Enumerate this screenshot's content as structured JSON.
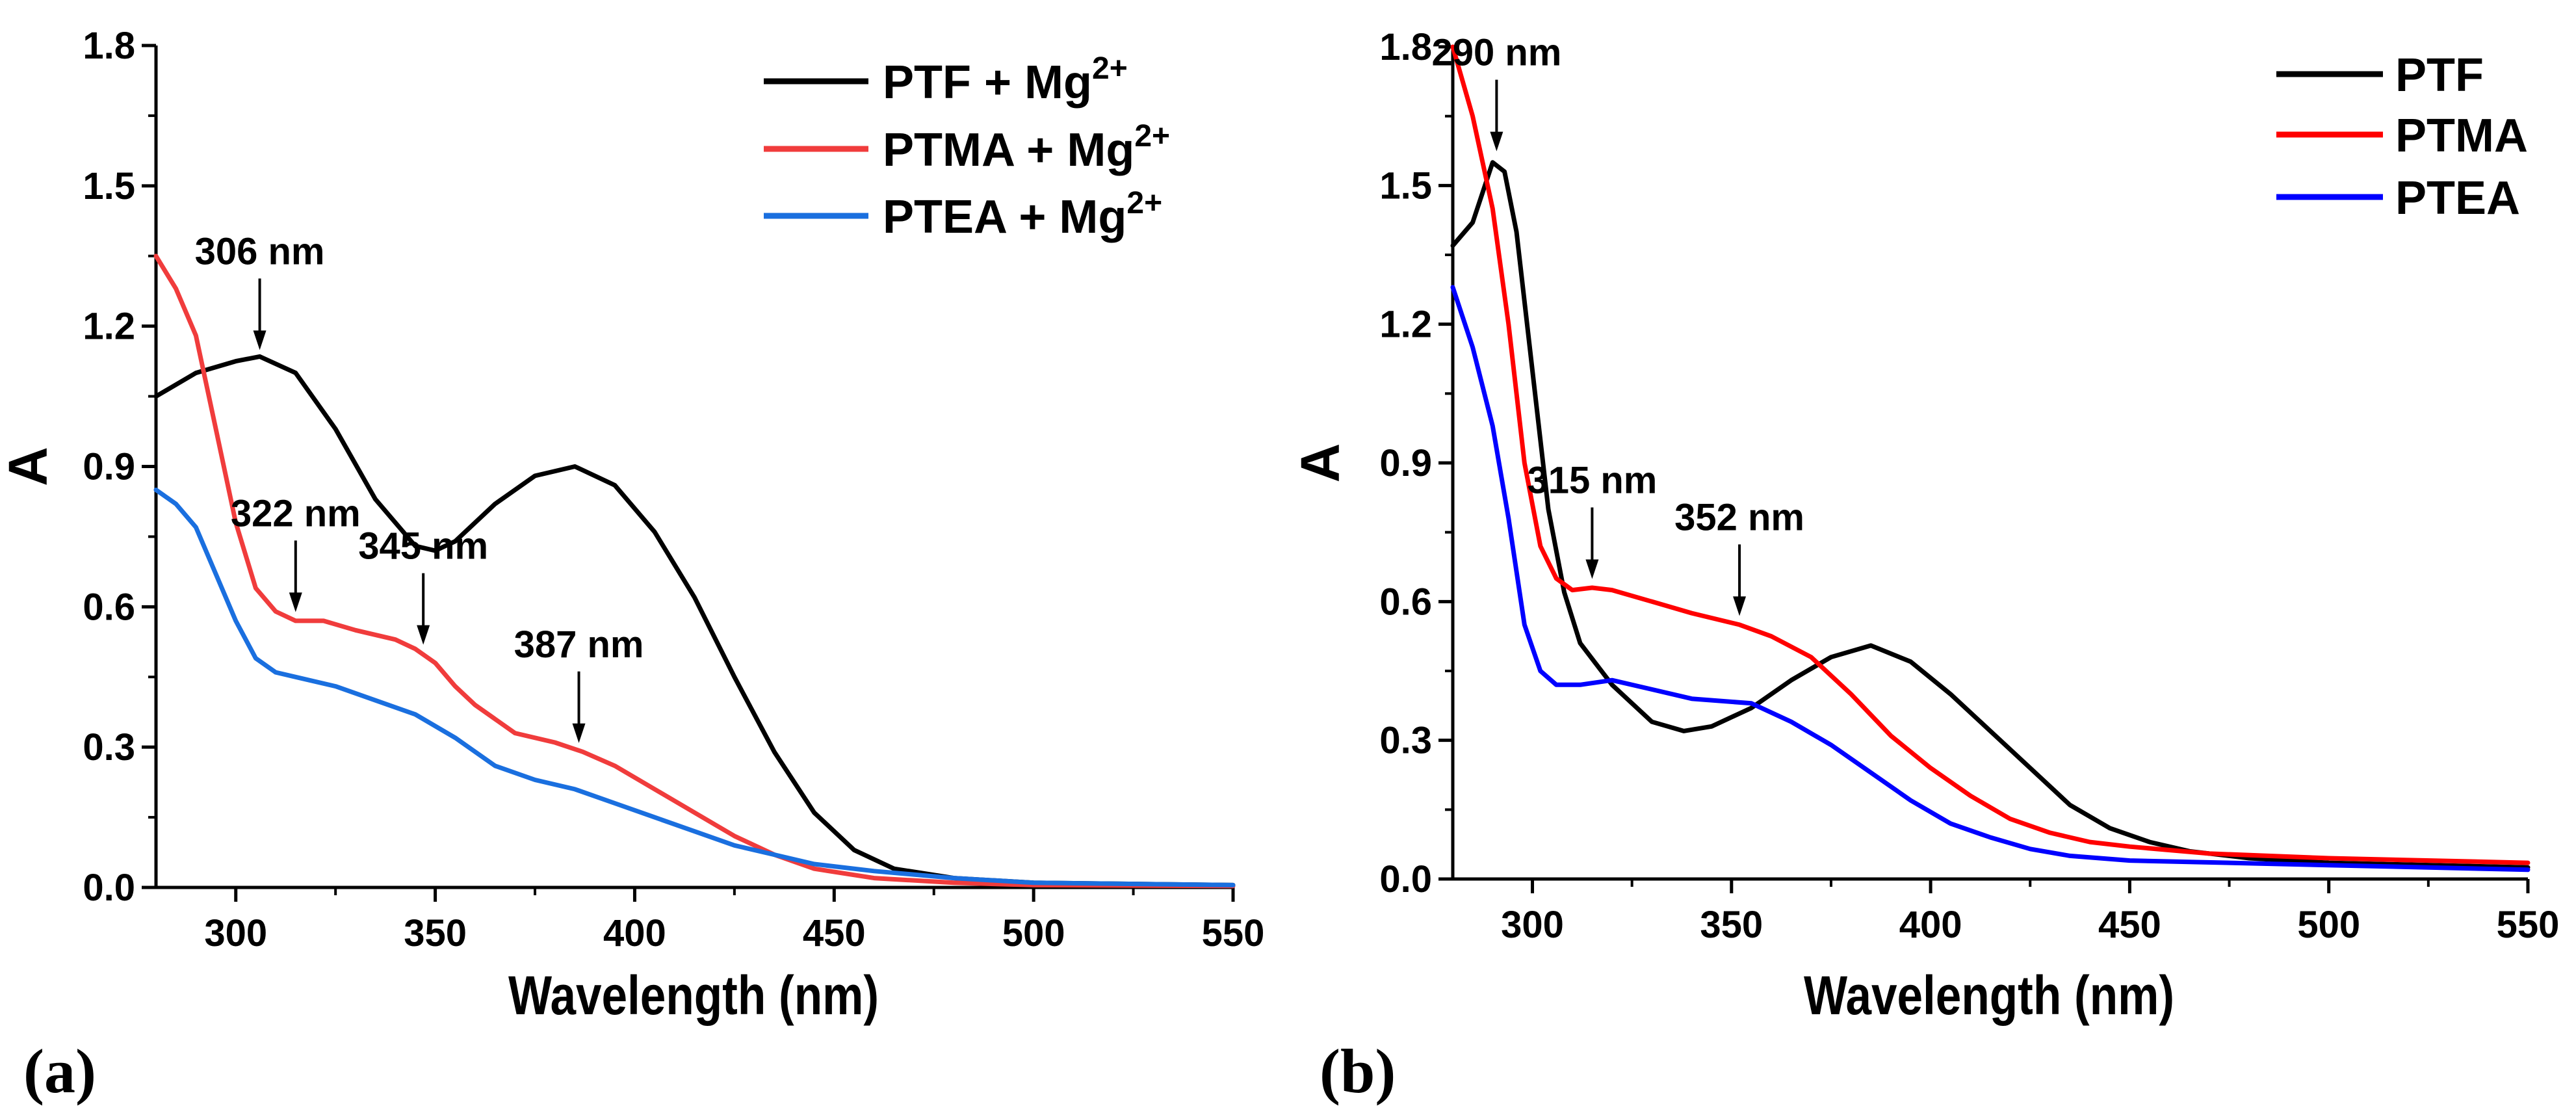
{
  "chart_data": [
    {
      "type": "line",
      "panel_label": "(a)",
      "xlabel": "Wavelength (nm)",
      "ylabel": "A",
      "xlim": [
        280,
        550
      ],
      "ylim": [
        0,
        1.8
      ],
      "xticks": [
        "300",
        "350",
        "400",
        "450",
        "500",
        "550"
      ],
      "xtick_values": [
        300,
        350,
        400,
        450,
        500,
        550
      ],
      "yticks": [
        "0.0",
        "0.3",
        "0.6",
        "0.9",
        "1.2",
        "1.5",
        "1.8"
      ],
      "ytick_values": [
        0,
        0.3,
        0.6,
        0.9,
        1.2,
        1.5,
        1.8
      ],
      "grid": false,
      "legend_placement": "top-right",
      "series": [
        {
          "name": "PTF + Mg",
          "superscript": "2+",
          "color": "#000000",
          "x": [
            280,
            290,
            300,
            306,
            315,
            325,
            335,
            345,
            350,
            355,
            365,
            375,
            385,
            395,
            405,
            415,
            425,
            435,
            445,
            455,
            465,
            480,
            500,
            550
          ],
          "y": [
            1.05,
            1.1,
            1.125,
            1.135,
            1.1,
            0.98,
            0.83,
            0.73,
            0.72,
            0.74,
            0.82,
            0.88,
            0.9,
            0.86,
            0.76,
            0.62,
            0.45,
            0.29,
            0.16,
            0.08,
            0.04,
            0.02,
            0.01,
            0.005
          ]
        },
        {
          "name": "PTMA + Mg",
          "superscript": "2+",
          "color": "#f03c3c",
          "x": [
            280,
            285,
            290,
            295,
            300,
            305,
            310,
            315,
            322,
            330,
            340,
            345,
            350,
            355,
            360,
            370,
            380,
            387,
            395,
            405,
            415,
            425,
            435,
            445,
            460,
            480,
            500,
            550
          ],
          "y": [
            1.35,
            1.28,
            1.18,
            0.98,
            0.78,
            0.64,
            0.59,
            0.57,
            0.57,
            0.55,
            0.53,
            0.51,
            0.48,
            0.43,
            0.39,
            0.33,
            0.31,
            0.29,
            0.26,
            0.21,
            0.16,
            0.11,
            0.07,
            0.04,
            0.02,
            0.01,
            0.005,
            0.003
          ]
        },
        {
          "name": "PTEA + Mg",
          "superscript": "2+",
          "color": "#1a6fdf",
          "x": [
            280,
            285,
            290,
            295,
            300,
            305,
            310,
            315,
            325,
            335,
            345,
            355,
            365,
            375,
            385,
            395,
            405,
            415,
            425,
            435,
            445,
            460,
            480,
            500,
            550
          ],
          "y": [
            0.85,
            0.82,
            0.77,
            0.67,
            0.57,
            0.49,
            0.46,
            0.45,
            0.43,
            0.4,
            0.37,
            0.32,
            0.26,
            0.23,
            0.21,
            0.18,
            0.15,
            0.12,
            0.09,
            0.07,
            0.05,
            0.035,
            0.02,
            0.01,
            0.005
          ]
        }
      ],
      "annotations": [
        {
          "text": "306 nm",
          "x": 306,
          "y": 1.135
        },
        {
          "text": "322 nm",
          "x": 315,
          "y": 0.575
        },
        {
          "text": "345 nm",
          "x": 347,
          "y": 0.505
        },
        {
          "text": "387 nm",
          "x": 386,
          "y": 0.295
        }
      ]
    },
    {
      "type": "line",
      "panel_label": "(b)",
      "xlabel": "Wavelength (nm)",
      "ylabel": "A",
      "xlim": [
        280,
        550
      ],
      "ylim": [
        0,
        1.8
      ],
      "xticks": [
        "300",
        "350",
        "400",
        "450",
        "500",
        "550"
      ],
      "xtick_values": [
        300,
        350,
        400,
        450,
        500,
        550
      ],
      "yticks": [
        "0.0",
        "0.3",
        "0.6",
        "0.9",
        "1.2",
        "1.5",
        "1.8"
      ],
      "ytick_values": [
        0,
        0.3,
        0.6,
        0.9,
        1.2,
        1.5,
        1.8
      ],
      "grid": false,
      "legend_placement": "top-right",
      "series": [
        {
          "name": "PTF",
          "superscript": "",
          "color": "#000000",
          "x": [
            280,
            285,
            290,
            293,
            296,
            300,
            304,
            308,
            312,
            320,
            330,
            338,
            345,
            355,
            365,
            375,
            385,
            395,
            405,
            415,
            425,
            435,
            445,
            455,
            465,
            480,
            500,
            550
          ],
          "y": [
            1.37,
            1.42,
            1.55,
            1.53,
            1.4,
            1.1,
            0.8,
            0.62,
            0.51,
            0.42,
            0.34,
            0.32,
            0.33,
            0.37,
            0.43,
            0.48,
            0.505,
            0.47,
            0.4,
            0.32,
            0.24,
            0.16,
            0.11,
            0.08,
            0.06,
            0.045,
            0.035,
            0.025
          ]
        },
        {
          "name": "PTMA",
          "superscript": "",
          "color": "#ff0000",
          "x": [
            280,
            285,
            290,
            294,
            298,
            302,
            306,
            310,
            315,
            320,
            330,
            340,
            352,
            360,
            370,
            380,
            390,
            400,
            410,
            420,
            430,
            440,
            450,
            470,
            500,
            550
          ],
          "y": [
            1.8,
            1.65,
            1.45,
            1.2,
            0.9,
            0.72,
            0.65,
            0.625,
            0.63,
            0.625,
            0.6,
            0.575,
            0.55,
            0.525,
            0.48,
            0.4,
            0.31,
            0.24,
            0.18,
            0.13,
            0.1,
            0.08,
            0.07,
            0.055,
            0.045,
            0.035
          ]
        },
        {
          "name": "PTEA",
          "superscript": "",
          "color": "#0000ff",
          "x": [
            280,
            285,
            290,
            294,
            298,
            302,
            306,
            312,
            320,
            330,
            340,
            355,
            365,
            375,
            385,
            395,
            405,
            415,
            425,
            435,
            450,
            500,
            550
          ],
          "y": [
            1.28,
            1.15,
            0.98,
            0.78,
            0.55,
            0.45,
            0.42,
            0.42,
            0.43,
            0.41,
            0.39,
            0.38,
            0.34,
            0.29,
            0.23,
            0.17,
            0.12,
            0.09,
            0.065,
            0.05,
            0.04,
            0.03,
            0.02
          ]
        }
      ],
      "annotations": [
        {
          "text": "290 nm",
          "x": 291,
          "y": 1.56
        },
        {
          "text": "315 nm",
          "x": 315,
          "y": 0.635
        },
        {
          "text": "352 nm",
          "x": 352,
          "y": 0.555
        }
      ]
    }
  ]
}
